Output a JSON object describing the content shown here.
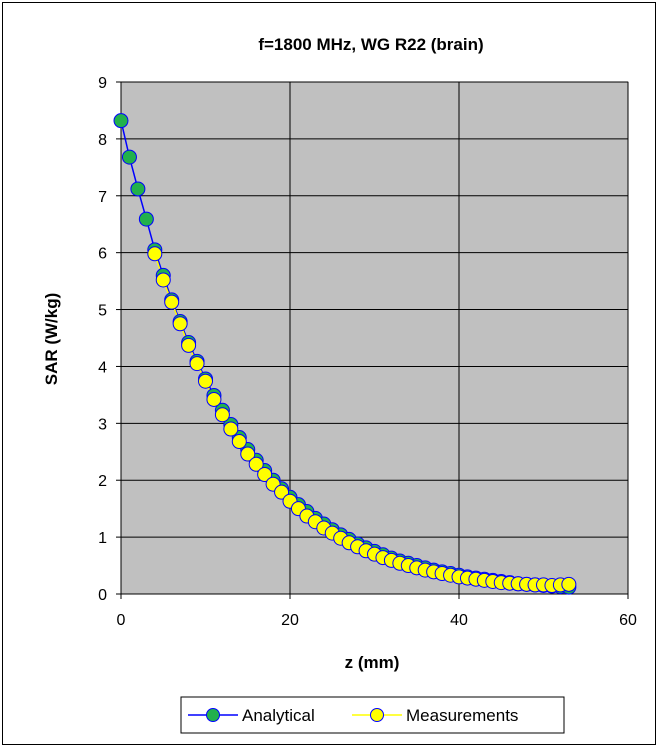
{
  "chart_data": {
    "type": "scatter",
    "title": "f=1800 MHz, WG R22 (brain)",
    "xlabel": "z (mm)",
    "ylabel": "SAR (W/kg)",
    "xlim": [
      0,
      60
    ],
    "ylim": [
      0,
      9
    ],
    "x_ticks": [
      0,
      20,
      40,
      60
    ],
    "y_ticks": [
      0,
      1,
      2,
      3,
      4,
      5,
      6,
      7,
      8,
      9
    ],
    "grid": true,
    "legend_position": "bottom",
    "colors": {
      "plot_background": "#c0c0c0",
      "analytical_line": "#0000ff",
      "analytical_marker": "#22b14c",
      "measurement_marker": "#ffff00"
    },
    "series": [
      {
        "name": "Analytical",
        "x": [
          0,
          1,
          2,
          3,
          4,
          5,
          6,
          7,
          8,
          9,
          10,
          11,
          12,
          13,
          14,
          15,
          16,
          17,
          18,
          19,
          20,
          21,
          22,
          23,
          24,
          25,
          26,
          27,
          28,
          29,
          30,
          31,
          32,
          33,
          34,
          35,
          36,
          37,
          38,
          39,
          40,
          41,
          42,
          43,
          44,
          45,
          46,
          47,
          48,
          49,
          50,
          51,
          52,
          53
        ],
        "y": [
          8.32,
          7.68,
          7.12,
          6.59,
          6.05,
          5.6,
          5.17,
          4.79,
          4.42,
          4.09,
          3.78,
          3.49,
          3.23,
          2.98,
          2.75,
          2.54,
          2.35,
          2.17,
          2.0,
          1.85,
          1.7,
          1.57,
          1.45,
          1.33,
          1.23,
          1.13,
          1.04,
          0.96,
          0.88,
          0.81,
          0.75,
          0.69,
          0.63,
          0.58,
          0.54,
          0.5,
          0.46,
          0.42,
          0.39,
          0.36,
          0.33,
          0.3,
          0.28,
          0.26,
          0.24,
          0.22,
          0.2,
          0.18,
          0.17,
          0.16,
          0.15,
          0.14,
          0.13,
          0.12
        ]
      },
      {
        "name": "Measurements",
        "x": [
          4,
          5,
          6,
          7,
          8,
          9,
          10,
          11,
          12,
          13,
          14,
          15,
          16,
          17,
          18,
          19,
          20,
          21,
          22,
          23,
          24,
          25,
          26,
          27,
          28,
          29,
          30,
          31,
          32,
          33,
          34,
          35,
          36,
          37,
          38,
          39,
          40,
          41,
          42,
          43,
          44,
          45,
          46,
          47,
          48,
          49,
          50,
          51,
          52,
          53
        ],
        "y": [
          5.98,
          5.52,
          5.13,
          4.75,
          4.37,
          4.05,
          3.74,
          3.42,
          3.15,
          2.9,
          2.68,
          2.46,
          2.28,
          2.1,
          1.93,
          1.79,
          1.63,
          1.5,
          1.37,
          1.27,
          1.16,
          1.07,
          0.98,
          0.9,
          0.83,
          0.76,
          0.7,
          0.64,
          0.59,
          0.54,
          0.5,
          0.46,
          0.42,
          0.39,
          0.36,
          0.33,
          0.3,
          0.28,
          0.26,
          0.24,
          0.22,
          0.2,
          0.19,
          0.18,
          0.17,
          0.16,
          0.16,
          0.15,
          0.16,
          0.17
        ]
      }
    ]
  }
}
